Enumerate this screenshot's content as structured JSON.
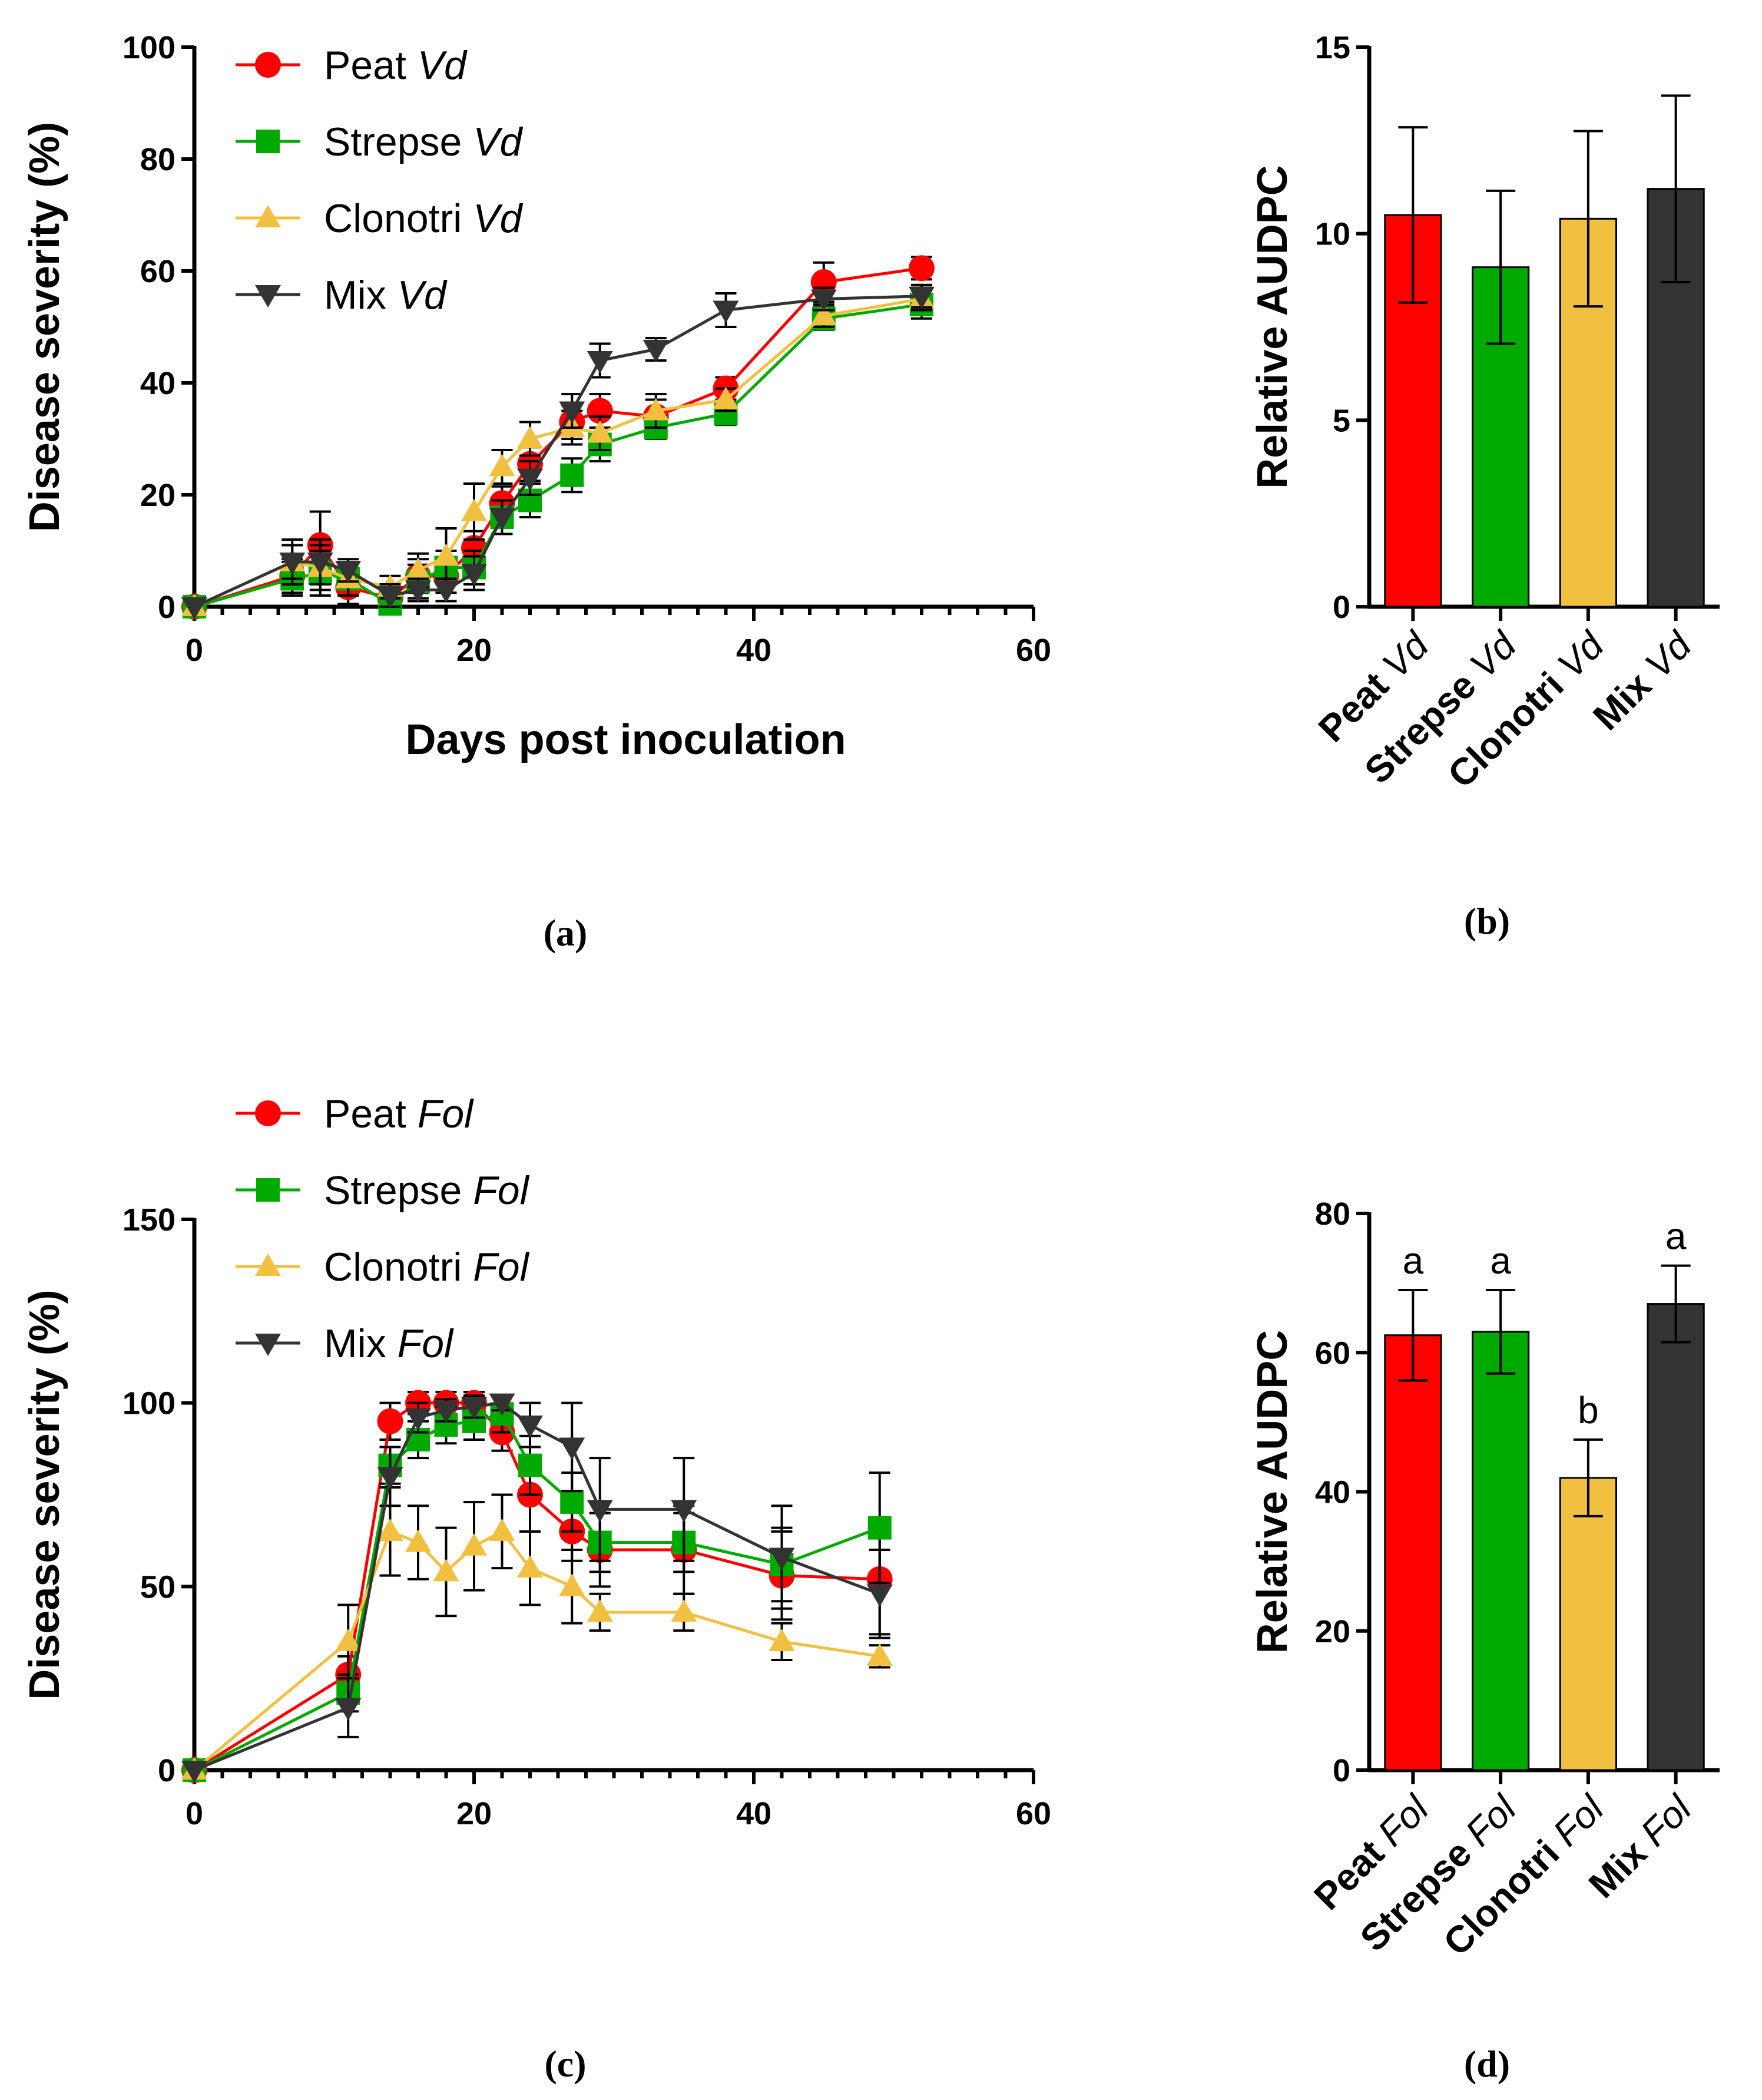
{
  "colors": {
    "peat": "#ff0000",
    "strepse": "#00aa00",
    "clonotri": "#f2c040",
    "mix": "#333333"
  },
  "panel_labels": {
    "a": "(a)",
    "b": "(b)",
    "c": "(c)",
    "d": "(d)"
  },
  "chart_data": [
    {
      "id": "a",
      "type": "line",
      "xlabel": "Days post inoculation",
      "ylabel": "Disease severity (%)",
      "xlim": [
        0,
        60
      ],
      "ylim": [
        0,
        100
      ],
      "xticks": [
        "0",
        "20",
        "40",
        "60"
      ],
      "yticks": [
        "0",
        "20",
        "40",
        "60",
        "80",
        "100"
      ],
      "series": [
        {
          "name": "Peat",
          "pathogen": "Vd",
          "color": "peat",
          "marker": "circle",
          "x": [
            0,
            7,
            9,
            11,
            14,
            16,
            18,
            20,
            22,
            24,
            27,
            29,
            33,
            38,
            45,
            52
          ],
          "y": [
            0,
            5.5,
            11,
            3.5,
            1.5,
            5.5,
            5.5,
            10.5,
            18.5,
            25.5,
            33,
            35,
            34,
            39,
            58,
            60.5
          ],
          "err": [
            0,
            3,
            6,
            3,
            2,
            3,
            3,
            3,
            3,
            3,
            3,
            3,
            3,
            2,
            3.5,
            2
          ]
        },
        {
          "name": "Strepse",
          "pathogen": "Vd",
          "color": "strepse",
          "marker": "square",
          "x": [
            0,
            7,
            9,
            11,
            14,
            16,
            18,
            20,
            22,
            24,
            27,
            29,
            33,
            38,
            45,
            52
          ],
          "y": [
            0,
            5,
            6,
            5,
            0.5,
            4.5,
            7,
            7,
            16,
            19,
            23.5,
            29,
            32,
            34.5,
            51.5,
            54
          ],
          "err": [
            0,
            3,
            4,
            3,
            1,
            3,
            3,
            3,
            3,
            3,
            3,
            3,
            2,
            2,
            2,
            2.5
          ]
        },
        {
          "name": "Clonotri",
          "pathogen": "Vd",
          "color": "clonotri",
          "marker": "triangle-up",
          "x": [
            0,
            7,
            9,
            11,
            14,
            16,
            18,
            20,
            22,
            24,
            27,
            29,
            33,
            38,
            45,
            52
          ],
          "y": [
            0,
            8,
            7,
            5,
            3.5,
            6.5,
            9,
            17,
            25,
            30,
            32,
            31,
            35,
            37,
            52,
            55
          ],
          "err": [
            0,
            3,
            4,
            3,
            2,
            3,
            5,
            5,
            3,
            3,
            3,
            3,
            3,
            2,
            2,
            2
          ]
        },
        {
          "name": "Mix",
          "pathogen": "Vd",
          "color": "mix",
          "marker": "triangle-down",
          "x": [
            0,
            7,
            9,
            11,
            14,
            16,
            18,
            20,
            22,
            24,
            27,
            29,
            33,
            38,
            45,
            52
          ],
          "y": [
            0,
            8,
            8,
            6.5,
            2,
            3,
            3,
            6,
            16,
            23,
            35,
            44,
            46,
            53,
            55,
            55.5
          ],
          "err": [
            0,
            4,
            4,
            2,
            2,
            2,
            2,
            3,
            3,
            3,
            3,
            3,
            2,
            3,
            2,
            2
          ]
        }
      ],
      "legend_position": "top-left"
    },
    {
      "id": "b",
      "type": "bar",
      "ylabel": "Relative AUDPC",
      "ylim": [
        0,
        15
      ],
      "yticks": [
        "0",
        "5",
        "10",
        "15"
      ],
      "categories": [
        {
          "bold": "Peat",
          "italic": "Vd",
          "color": "peat"
        },
        {
          "bold": "Strepse",
          "italic": "Vd",
          "color": "strepse"
        },
        {
          "bold": "Clonotri",
          "italic": "Vd",
          "color": "clonotri"
        },
        {
          "bold": "Mix",
          "italic": "Vd",
          "color": "mix"
        }
      ],
      "values": [
        10.5,
        9.1,
        10.4,
        11.2
      ],
      "err": [
        2.35,
        2.05,
        2.35,
        2.5
      ],
      "significance": [
        "",
        "",
        "",
        ""
      ]
    },
    {
      "id": "c",
      "type": "line",
      "xlabel": "",
      "ylabel": "Disease severity (%)",
      "xlim": [
        0,
        60
      ],
      "ylim": [
        0,
        150
      ],
      "xticks": [
        "0",
        "20",
        "40",
        "60"
      ],
      "yticks": [
        "0",
        "50",
        "100",
        "150"
      ],
      "series": [
        {
          "name": "Peat",
          "pathogen": "Fol",
          "color": "peat",
          "marker": "circle",
          "x": [
            0,
            11,
            14,
            16,
            18,
            20,
            22,
            24,
            27,
            29,
            35,
            42,
            49
          ],
          "y": [
            0,
            26,
            95,
            100,
            100,
            100,
            92,
            75,
            65,
            60,
            60,
            53,
            52
          ],
          "err": [
            0,
            5,
            5,
            3,
            3,
            3,
            5,
            10,
            8,
            10,
            12,
            12,
            15
          ]
        },
        {
          "name": "Strepse",
          "pathogen": "Fol",
          "color": "strepse",
          "marker": "square",
          "x": [
            0,
            11,
            14,
            16,
            18,
            20,
            22,
            24,
            27,
            29,
            35,
            42,
            49
          ],
          "y": [
            0,
            21,
            83,
            90,
            94,
            95,
            97,
            83,
            73,
            62,
            62,
            56,
            66
          ],
          "err": [
            0,
            5,
            5,
            5,
            5,
            5,
            5,
            8,
            8,
            8,
            8,
            10,
            15
          ]
        },
        {
          "name": "Clonotri",
          "pathogen": "Fol",
          "color": "clonotri",
          "marker": "triangle-up",
          "x": [
            0,
            11,
            14,
            16,
            18,
            20,
            22,
            24,
            27,
            29,
            35,
            42,
            49
          ],
          "y": [
            0,
            35,
            65,
            62,
            54,
            61,
            65,
            55,
            50,
            43,
            43,
            35,
            31
          ],
          "err": [
            0,
            10,
            12,
            10,
            12,
            12,
            10,
            10,
            10,
            5,
            5,
            5,
            3
          ]
        },
        {
          "name": "Mix",
          "pathogen": "Fol",
          "color": "mix",
          "marker": "triangle-down",
          "x": [
            0,
            11,
            14,
            16,
            18,
            20,
            22,
            24,
            27,
            29,
            35,
            42,
            49
          ],
          "y": [
            0,
            17,
            80,
            96,
            98,
            99,
            100,
            94,
            88,
            71,
            71,
            58,
            48
          ],
          "err": [
            0,
            8,
            8,
            4,
            3,
            3,
            2,
            6,
            12,
            14,
            14,
            14,
            12
          ]
        }
      ],
      "legend_position": "top-left"
    },
    {
      "id": "d",
      "type": "bar",
      "ylabel": "Relative AUDPC",
      "ylim": [
        0,
        80
      ],
      "yticks": [
        "0",
        "20",
        "40",
        "60",
        "80"
      ],
      "categories": [
        {
          "bold": "Peat",
          "italic": "Fol",
          "color": "peat"
        },
        {
          "bold": "Strepse",
          "italic": "Fol",
          "color": "strepse"
        },
        {
          "bold": "Clonotri",
          "italic": "Fol",
          "color": "clonotri"
        },
        {
          "bold": "Mix",
          "italic": "Fol",
          "color": "mix"
        }
      ],
      "values": [
        62.5,
        63,
        42,
        67
      ],
      "err": [
        6.5,
        6,
        5.5,
        5.5
      ],
      "significance": [
        "a",
        "a",
        "b",
        "a"
      ]
    }
  ]
}
